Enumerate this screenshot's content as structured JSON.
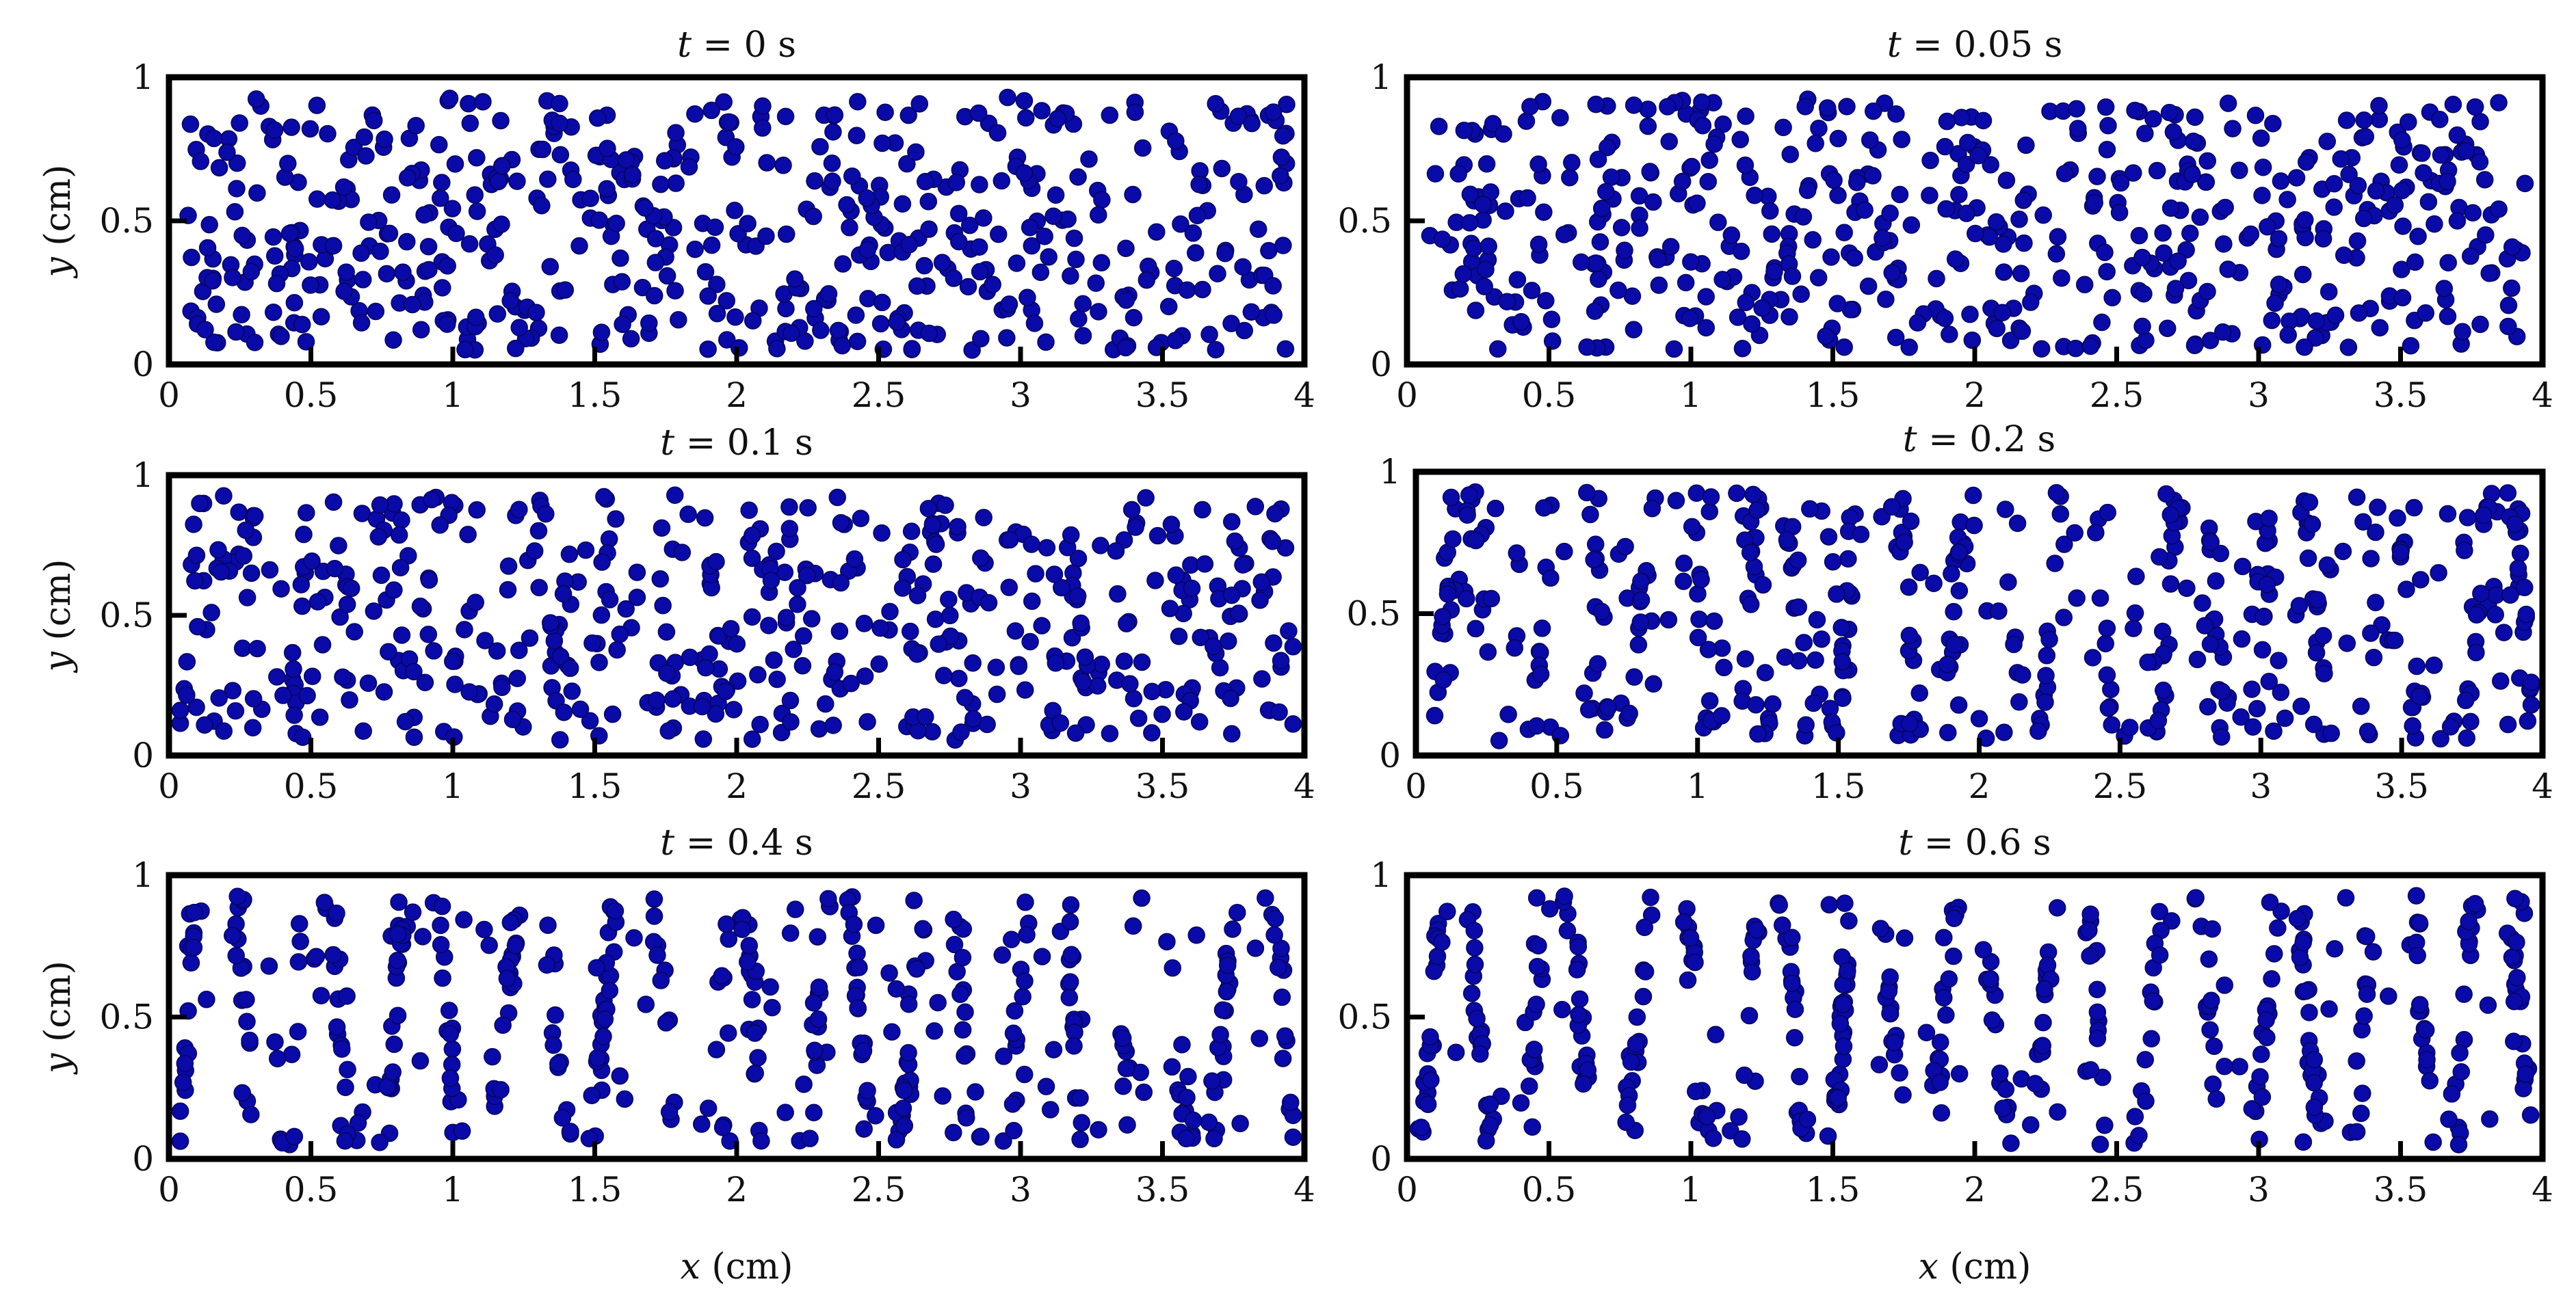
{
  "chart_data": [
    {
      "type": "scatter",
      "title": "t = 0 s",
      "xlabel": "",
      "ylabel": "y (cm)",
      "xlim": [
        0,
        4
      ],
      "ylim": [
        0,
        1
      ],
      "xticks": [
        "0",
        "0.5",
        "1",
        "1.5",
        "2",
        "2.5",
        "3",
        "3.5",
        "4"
      ],
      "yticks": [
        "0",
        "0.5",
        "1"
      ],
      "marker_color": "#0a0aa8",
      "particle_count": 540,
      "pattern": "uniform random distribution"
    },
    {
      "type": "scatter",
      "title": "t = 0.05 s",
      "xlabel": "",
      "ylabel": "",
      "xlim": [
        0,
        4
      ],
      "ylim": [
        0,
        1
      ],
      "xticks": [
        "0",
        "0.5",
        "1",
        "1.5",
        "2",
        "2.5",
        "3",
        "3.5",
        "4"
      ],
      "yticks": [
        "0",
        "0.5",
        "1"
      ],
      "marker_color": "#0a0aa8",
      "particle_count": 520,
      "pattern": "uniform random distribution"
    },
    {
      "type": "scatter",
      "title": "t = 0.1 s",
      "xlabel": "",
      "ylabel": "y (cm)",
      "xlim": [
        0,
        4
      ],
      "ylim": [
        0,
        1
      ],
      "xticks": [
        "0",
        "0.5",
        "1",
        "1.5",
        "2",
        "2.5",
        "3",
        "3.5",
        "4"
      ],
      "yticks": [
        "0",
        "0.5",
        "1"
      ],
      "marker_color": "#0a0aa8",
      "particle_count": 500,
      "pattern": "random with weak vertical streaks"
    },
    {
      "type": "scatter",
      "title": "t = 0.2 s",
      "xlabel": "",
      "ylabel": "",
      "xlim": [
        0,
        4
      ],
      "ylim": [
        0,
        1
      ],
      "xticks": [
        "0",
        "0.5",
        "1",
        "1.5",
        "2",
        "2.5",
        "3",
        "3.5",
        "4"
      ],
      "yticks": [
        "0",
        "0.5",
        "1"
      ],
      "marker_color": "#0a0aa8",
      "particle_count": 480,
      "pattern": "developing vertical chains"
    },
    {
      "type": "scatter",
      "title": "t = 0.4 s",
      "xlabel": "x (cm)",
      "ylabel": "y (cm)",
      "xlim": [
        0,
        4
      ],
      "ylim": [
        0,
        1
      ],
      "xticks": [
        "0",
        "0.5",
        "1",
        "1.5",
        "2",
        "2.5",
        "3",
        "3.5",
        "4"
      ],
      "yticks": [
        "0",
        "0.5",
        "1"
      ],
      "marker_color": "#0a0aa8",
      "particle_count": 440,
      "pattern": "vertical chains with branching"
    },
    {
      "type": "scatter",
      "title": "t = 0.6 s",
      "xlabel": "x (cm)",
      "ylabel": "",
      "xlim": [
        0,
        4
      ],
      "ylim": [
        0,
        1
      ],
      "xticks": [
        "0",
        "0.5",
        "1",
        "1.5",
        "2",
        "2.5",
        "3",
        "3.5",
        "4"
      ],
      "yticks": [
        "0",
        "0.5",
        "1"
      ],
      "marker_color": "#0a0aa8",
      "particle_count": 430,
      "pattern": "well-formed vertical chains"
    }
  ]
}
